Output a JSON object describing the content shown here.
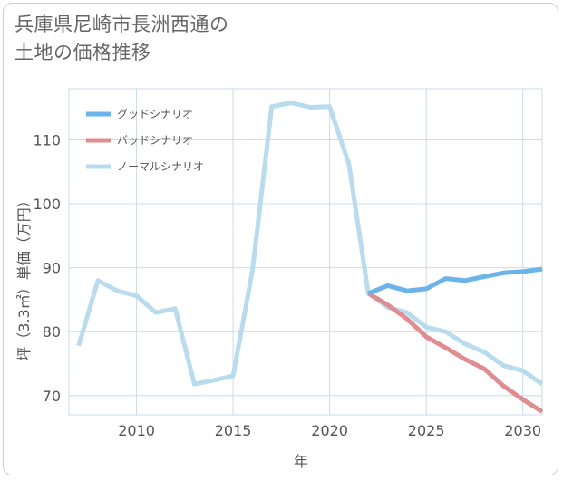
{
  "title_line1": "兵庫県尼崎市長洲西通の",
  "title_line2": "土地の価格推移",
  "chart_data": {
    "type": "line",
    "xlabel": "年",
    "ylabel": "坪（3.3㎡）単価（万円）",
    "xlim": [
      2006.5,
      2031
    ],
    "ylim": [
      67,
      118
    ],
    "xticks": [
      2010,
      2015,
      2020,
      2025,
      2030
    ],
    "yticks": [
      70,
      80,
      90,
      100,
      110
    ],
    "grid": true,
    "legend_position": "top-left",
    "series": [
      {
        "name": "グッドシナリオ",
        "color": "#6ab4ea",
        "x": [
          2022,
          2023,
          2024,
          2025,
          2026,
          2027,
          2028,
          2029,
          2030,
          2031
        ],
        "values": [
          86.0,
          87.2,
          86.4,
          86.7,
          88.3,
          88.0,
          88.6,
          89.2,
          89.4,
          89.8
        ]
      },
      {
        "name": "バッドシナリオ",
        "color": "#e08d92",
        "x": [
          2022,
          2023,
          2024,
          2025,
          2026,
          2027,
          2028,
          2029,
          2030,
          2031
        ],
        "values": [
          86.0,
          84.2,
          82.0,
          79.2,
          77.5,
          75.7,
          74.2,
          71.5,
          69.4,
          67.5
        ]
      },
      {
        "name": "ノーマルシナリオ",
        "color": "#b8dced",
        "x": [
          2007,
          2008,
          2009,
          2010,
          2011,
          2012,
          2013,
          2014,
          2015,
          2016,
          2017,
          2018,
          2019,
          2020,
          2021,
          2022,
          2023,
          2024,
          2025,
          2026,
          2027,
          2028,
          2029,
          2030,
          2031
        ],
        "values": [
          77.8,
          88.0,
          86.4,
          85.6,
          83.0,
          83.6,
          71.8,
          72.4,
          73.1,
          89.5,
          115.2,
          115.8,
          115.1,
          115.2,
          106.2,
          86.0,
          83.8,
          83.0,
          80.7,
          80.0,
          78.1,
          76.8,
          74.7,
          73.9,
          71.8
        ]
      }
    ]
  }
}
